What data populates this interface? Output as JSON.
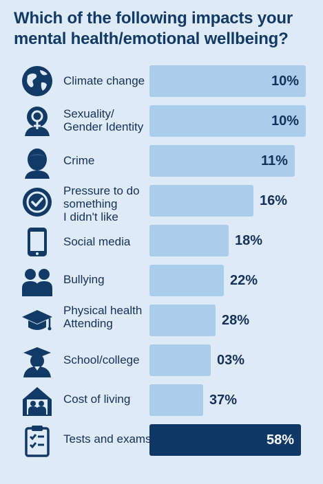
{
  "title": {
    "line1": "Which of the following impacts your",
    "line2": "mental health/emotional wellbeing?"
  },
  "chart_data": {
    "type": "bar",
    "orientation": "horizontal",
    "title": "Which of the following impacts your mental health/emotional wellbeing?",
    "categories": [
      [
        "Climate change"
      ],
      [
        "Sexuality/",
        "Gender Identity"
      ],
      [
        "Crime"
      ],
      [
        "Pressure to do",
        "something",
        "I didn't like"
      ],
      [
        "Social media"
      ],
      [
        "Bullying"
      ],
      [
        "Physical health",
        "Attending"
      ],
      [
        "School/college"
      ],
      [
        "Cost of living"
      ],
      [
        "Tests and exams"
      ]
    ],
    "values": [
      10,
      10,
      11,
      16,
      18,
      22,
      28,
      3,
      37,
      58
    ],
    "value_labels": [
      "10%",
      "10%",
      "11%",
      "16%",
      "18%",
      "22%",
      "28%",
      "03%",
      "37%",
      "58%"
    ],
    "bar_values": [
      0.99,
      0.99,
      0.92,
      0.66,
      0.5,
      0.47,
      0.42,
      0.39,
      0.34,
      0.96
    ],
    "value_inside": [
      true,
      true,
      true,
      false,
      false,
      false,
      false,
      false,
      false,
      true
    ],
    "highlight_index": 9,
    "icons": [
      "globe-icon",
      "gender-identity-icon",
      "person-icon",
      "check-badge-icon",
      "phone-icon",
      "people-icon",
      "graduation-cap-icon",
      "student-icon",
      "house-family-icon",
      "clipboard-check-icon"
    ],
    "colors": {
      "bar": "#a9cdea",
      "highlight": "#0f3866",
      "text": "#14315a",
      "background": "#deeaf6"
    }
  }
}
